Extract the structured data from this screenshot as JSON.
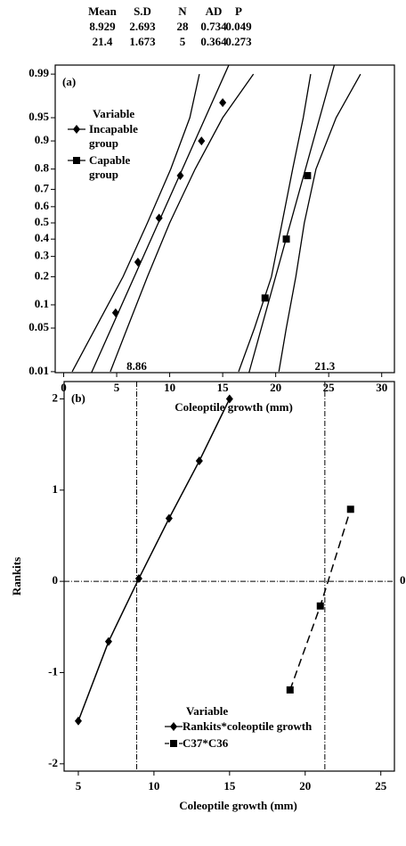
{
  "chart_data": [
    {
      "type": "probability",
      "panel_label": "(a)",
      "stats_table": {
        "columns": [
          "Mean",
          "S.D",
          "N",
          "AD",
          "P"
        ],
        "rows": [
          [
            8.929,
            2.693,
            28,
            0.734,
            0.049
          ],
          [
            21.4,
            1.673,
            5,
            0.364,
            0.273
          ]
        ]
      },
      "x_label": "Coleoptile growth (mm)",
      "xlim": [
        -0.8,
        31.2
      ],
      "xticks": [
        0,
        5,
        10,
        15,
        20,
        25,
        30
      ],
      "ylim": [
        0.0096,
        0.9932
      ],
      "yticks": [
        0.01,
        0.05,
        0.1,
        0.2,
        0.3,
        0.4,
        0.5,
        0.6,
        0.7,
        0.8,
        0.9,
        0.95,
        0.99
      ],
      "legend_title": "Variable",
      "series": [
        {
          "name": "Incapable group",
          "marker": "diamond",
          "color": "#000000",
          "x": [
            4.9,
            7,
            9,
            11,
            13,
            15
          ],
          "values": [
            0.08,
            0.27,
            0.53,
            0.77,
            0.9,
            0.97
          ]
        },
        {
          "name": "Capable group",
          "marker": "square",
          "color": "#000000",
          "x": [
            19,
            21,
            23
          ],
          "values": [
            0.12,
            0.4,
            0.77
          ]
        }
      ],
      "confidence_bands": [
        {
          "x": [
            0.8,
            3.0,
            5.6,
            7.9,
            10.1,
            11.9,
            12.8
          ],
          "values": [
            0.01,
            0.05,
            0.2,
            0.5,
            0.8,
            0.95,
            0.99
          ]
        },
        {
          "x": [
            4.4,
            6.0,
            7.9,
            10.0,
            12.4,
            15.0,
            17.9
          ],
          "values": [
            0.01,
            0.05,
            0.2,
            0.5,
            0.8,
            0.95,
            0.99
          ]
        },
        {
          "x": [
            16.5,
            18.0,
            19.6,
            20.6,
            21.6,
            22.6,
            23.3
          ],
          "values": [
            0.01,
            0.05,
            0.2,
            0.5,
            0.8,
            0.95,
            0.99
          ]
        },
        {
          "x": [
            20.3,
            21.0,
            21.9,
            22.7,
            23.8,
            25.7,
            28.0
          ],
          "values": [
            0.01,
            0.05,
            0.2,
            0.5,
            0.8,
            0.95,
            0.99
          ]
        }
      ]
    },
    {
      "type": "scatter_line",
      "panel_label": "(b)",
      "x_label": "Coleoptile growth (mm)",
      "y_label": "Rankits",
      "xlim": [
        4.06,
        25.9
      ],
      "xticks": [
        5,
        10,
        15,
        20,
        25
      ],
      "ylim": [
        -2.08,
        2.19
      ],
      "yticks": [
        -2,
        -1,
        0,
        1,
        2
      ],
      "reference_lines": {
        "x": [
          8.86,
          21.3
        ],
        "y": [
          0
        ]
      },
      "legend_title": "Variable",
      "series": [
        {
          "name": "Rankits*coleoptile growth",
          "marker": "diamond",
          "line_style": "solid",
          "color": "#000000",
          "x": [
            5,
            7,
            9,
            11,
            13,
            15
          ],
          "values": [
            -1.53,
            -0.66,
            0.03,
            0.69,
            1.32,
            2.0
          ]
        },
        {
          "name": "C37*C36",
          "marker": "square",
          "line_style": "dashed",
          "color": "#000000",
          "x": [
            19,
            21,
            23
          ],
          "values": [
            -1.19,
            -0.27,
            0.79
          ]
        }
      ]
    }
  ]
}
